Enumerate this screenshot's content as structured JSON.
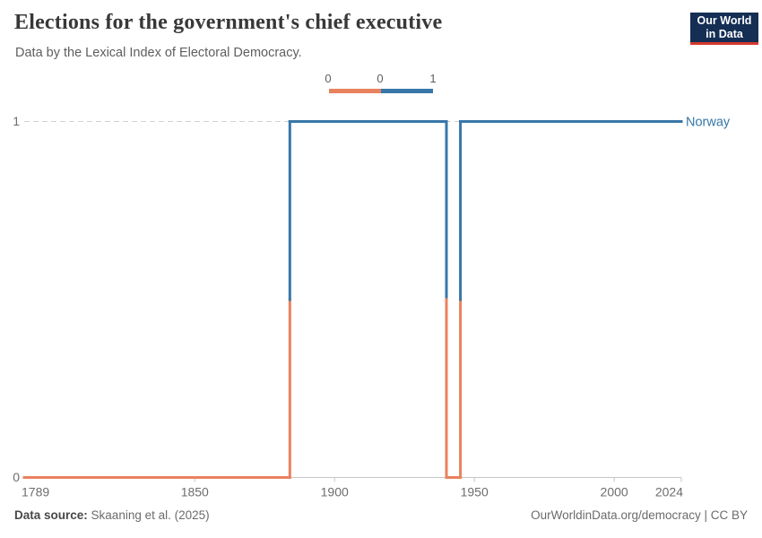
{
  "header": {
    "title": "Elections for the government's chief executive",
    "subtitle": "Data by the Lexical Index of Electoral Democracy."
  },
  "logo": {
    "line1": "Our World",
    "line2": "in Data",
    "bg_color": "#142e54",
    "accent_color": "#d4382e"
  },
  "legend": {
    "tick_labels": [
      "0",
      "0",
      "1"
    ],
    "segments": [
      {
        "value": "0",
        "color": "#E9825F"
      },
      {
        "value": "1",
        "color": "#3877A8"
      }
    ]
  },
  "chart_data": {
    "type": "line",
    "subtype": "step",
    "title": "Elections for the government's chief executive",
    "entity_label": "Norway",
    "xlim": [
      1789,
      2024
    ],
    "ylim": [
      0,
      1
    ],
    "x_ticks": [
      1789,
      1850,
      1900,
      1950,
      2000,
      2024
    ],
    "x_tick_marks": [
      1850,
      1900,
      1950,
      2000,
      2024
    ],
    "y_ticks": [
      0,
      1
    ],
    "grid": "dashed horizontal gridline at y=1, solid axis at y=0",
    "legend_position": "top-center",
    "value_colors": {
      "0": "#E9825F",
      "1": "#3877A8"
    },
    "series": [
      {
        "name": "Norway",
        "label_color": "#3577A8",
        "points": [
          [
            1789,
            0
          ],
          [
            1884,
            0
          ],
          [
            1884,
            1
          ],
          [
            1940,
            1
          ],
          [
            1940,
            0
          ],
          [
            1945,
            0
          ],
          [
            1945,
            1
          ],
          [
            2024,
            1
          ]
        ],
        "steps": [
          {
            "from": 1789,
            "to": 1883,
            "value": 0
          },
          {
            "from": 1884,
            "to": 1939,
            "value": 1
          },
          {
            "from": 1940,
            "to": 1944,
            "value": 0
          },
          {
            "from": 1945,
            "to": 2024,
            "value": 1
          }
        ]
      }
    ]
  },
  "footer": {
    "source_label": "Data source:",
    "source_text": "Skaaning et al. (2025)",
    "credit": "OurWorldinData.org/democracy | CC BY"
  }
}
